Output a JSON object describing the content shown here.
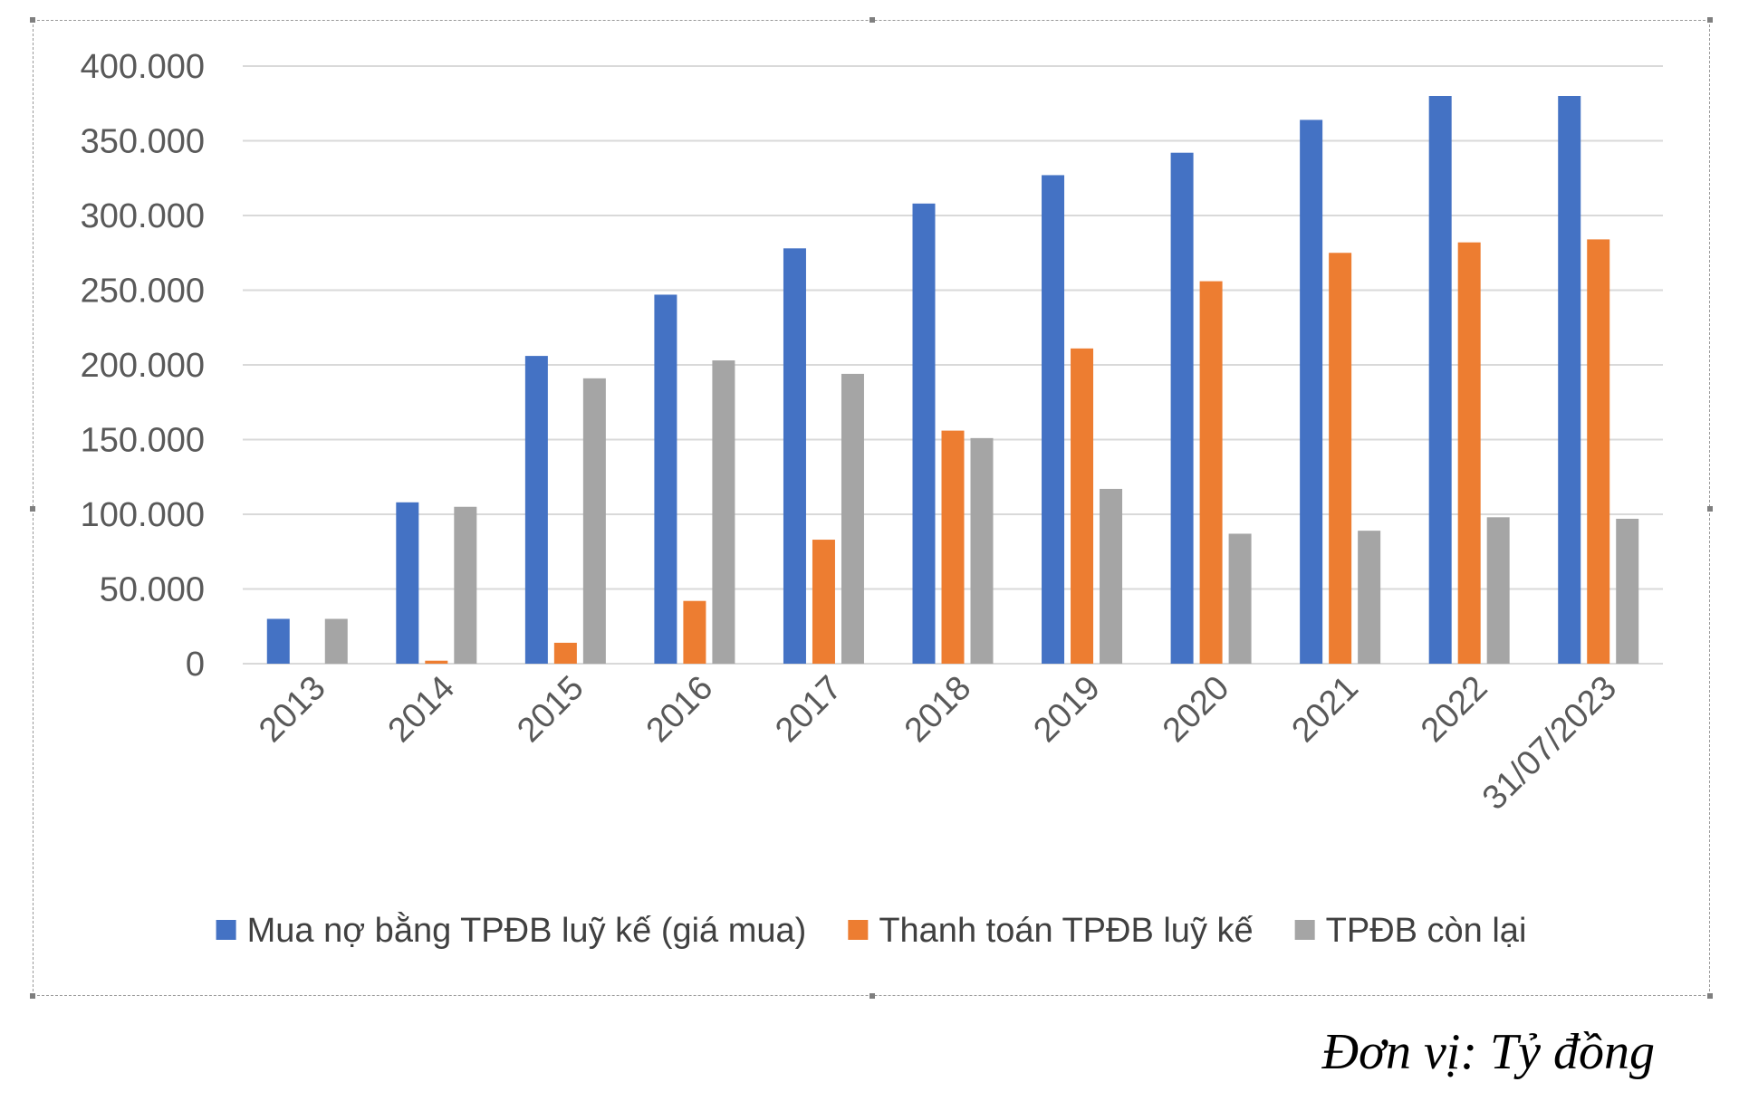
{
  "unit_note": "Đơn vị: Tỷ đồng",
  "colors": {
    "series_1": "#4472C4",
    "series_2": "#ED7D31",
    "series_3": "#A5A5A5",
    "grid": "#D9D9D9",
    "axis_text": "#595959"
  },
  "chart_data": {
    "type": "bar",
    "title": "",
    "xlabel": "",
    "ylabel": "",
    "ylim": [
      0,
      400000
    ],
    "yticks": [
      0,
      50000,
      100000,
      150000,
      200000,
      250000,
      300000,
      350000,
      400000
    ],
    "ytick_labels": [
      "0",
      "50.000",
      "100.000",
      "150.000",
      "200.000",
      "250.000",
      "300.000",
      "350.000",
      "400.000"
    ],
    "categories": [
      "2013",
      "2014",
      "2015",
      "2016",
      "2017",
      "2018",
      "2019",
      "2020",
      "2021",
      "2022",
      "31/07/2023"
    ],
    "grid": true,
    "legend_position": "bottom",
    "series": [
      {
        "name": "Mua nợ bằng TPĐB luỹ kế (giá mua)",
        "color": "#4472C4",
        "values": [
          30000,
          108000,
          206000,
          247000,
          278000,
          308000,
          327000,
          342000,
          364000,
          380000,
          380000
        ]
      },
      {
        "name": "Thanh toán TPĐB luỹ kế",
        "color": "#ED7D31",
        "values": [
          0,
          2000,
          14000,
          42000,
          83000,
          156000,
          211000,
          256000,
          275000,
          282000,
          284000
        ]
      },
      {
        "name": "TPĐB còn lại",
        "color": "#A5A5A5",
        "values": [
          30000,
          105000,
          191000,
          203000,
          194000,
          151000,
          117000,
          87000,
          89000,
          98000,
          97000
        ]
      }
    ]
  }
}
